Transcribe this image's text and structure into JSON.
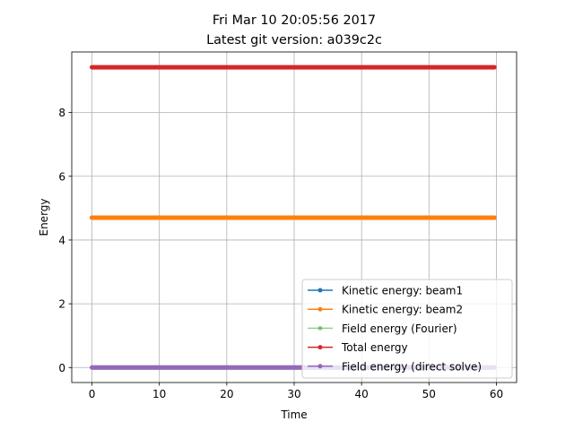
{
  "chart_data": {
    "type": "line",
    "title_line1": "Fri Mar 10 20:05:56 2017",
    "title_line2": "Latest git version: a039c2c",
    "xlabel": "Time",
    "ylabel": "Energy",
    "xlim": [
      -3,
      63
    ],
    "ylim": [
      -0.47,
      9.9
    ],
    "xticks": [
      0,
      10,
      20,
      30,
      40,
      50,
      60
    ],
    "yticks": [
      0,
      2,
      4,
      6,
      8
    ],
    "x_range": [
      0,
      59.7
    ],
    "grid": true,
    "marker": "point",
    "legend_position": "lower-right",
    "series": [
      {
        "name": "Kinetic energy: beam1",
        "color": "#1f77b4",
        "values": [
          4.7,
          4.7
        ],
        "alpha": 1.0
      },
      {
        "name": "Kinetic energy: beam2",
        "color": "#ff7f0e",
        "values": [
          4.7,
          4.7
        ],
        "alpha": 1.0
      },
      {
        "name": "Field energy (Fourier)",
        "color": "#2ca02c",
        "values": [
          0.0,
          0.0
        ],
        "alpha": 0.5
      },
      {
        "name": "Total energy",
        "color": "#d62728",
        "values": [
          9.42,
          9.42
        ],
        "alpha": 1.0
      },
      {
        "name": "Field energy (direct solve)",
        "color": "#9467bd",
        "values": [
          0.0,
          0.0
        ],
        "alpha": 1.0
      }
    ]
  }
}
